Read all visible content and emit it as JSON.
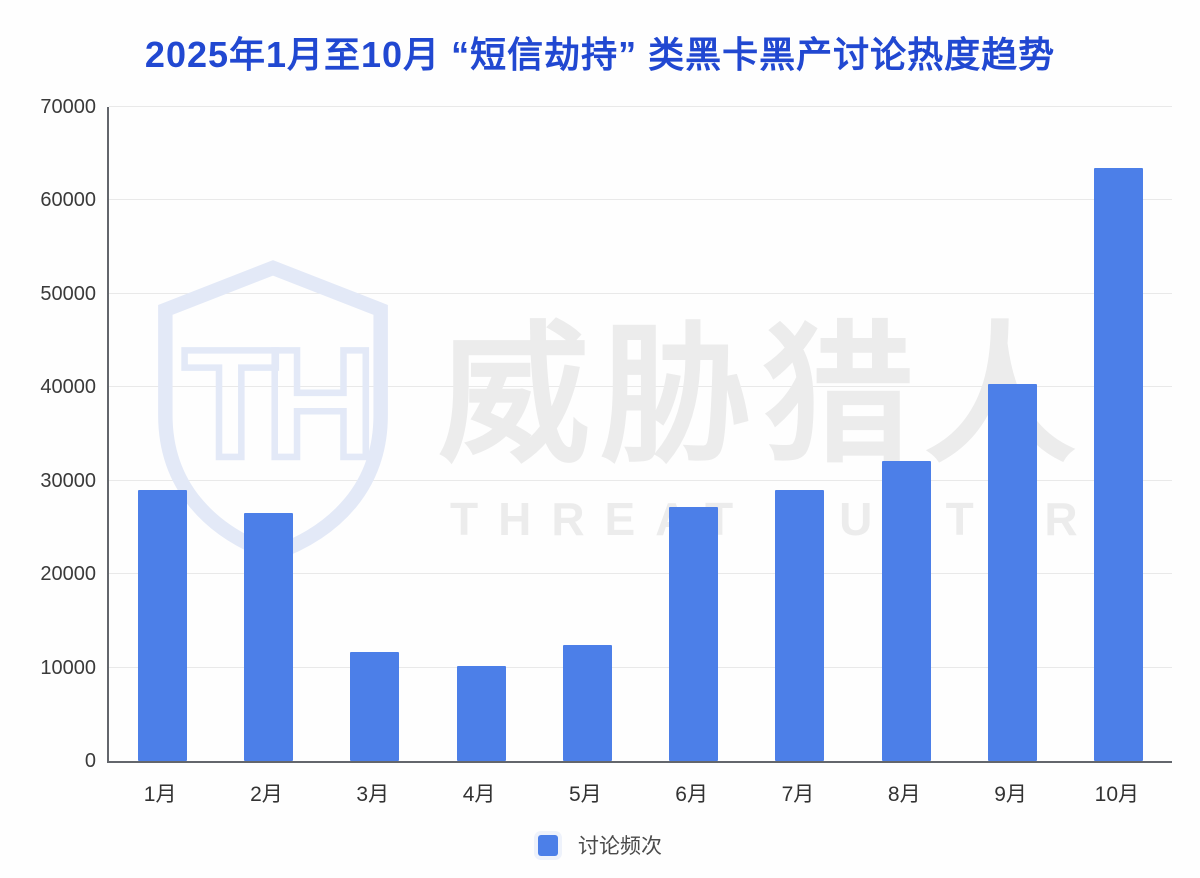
{
  "title": "2025年1月至10月 “短信劫持” 类黑卡黑产讨论热度趋势",
  "watermark": {
    "logo_monogram": "TH",
    "name_cn": "威胁猎人",
    "name_en": "THREAT HUNTER"
  },
  "legend": {
    "items": [
      {
        "label": "讨论频次",
        "color": "#4c7fe8"
      }
    ]
  },
  "colors": {
    "bar": "#4c7fe8",
    "title": "#2148d1",
    "axis_line": "#63666c",
    "gridline": "#e9e9e9",
    "tick_text": "#3a3a3a",
    "watermark_shield": "#e3e9f7",
    "watermark_text": "#ececec"
  },
  "chart_data": {
    "type": "bar",
    "title": "2025年1月至10月 “短信劫持” 类黑卡黑产讨论热度趋势",
    "categories": [
      "1月",
      "2月",
      "3月",
      "4月",
      "5月",
      "6月",
      "7月",
      "8月",
      "9月",
      "10月"
    ],
    "series": [
      {
        "name": "讨论频次",
        "values": [
          29000,
          26500,
          11700,
          10200,
          12400,
          27200,
          29000,
          32100,
          40300,
          63500
        ]
      }
    ],
    "xlabel": "",
    "ylabel": "",
    "ylim": [
      0,
      70000
    ],
    "yticks": [
      0,
      10000,
      20000,
      30000,
      40000,
      50000,
      60000,
      70000
    ],
    "grid": true,
    "legend_position": "bottom",
    "bar_color": "#4c7fe8"
  }
}
